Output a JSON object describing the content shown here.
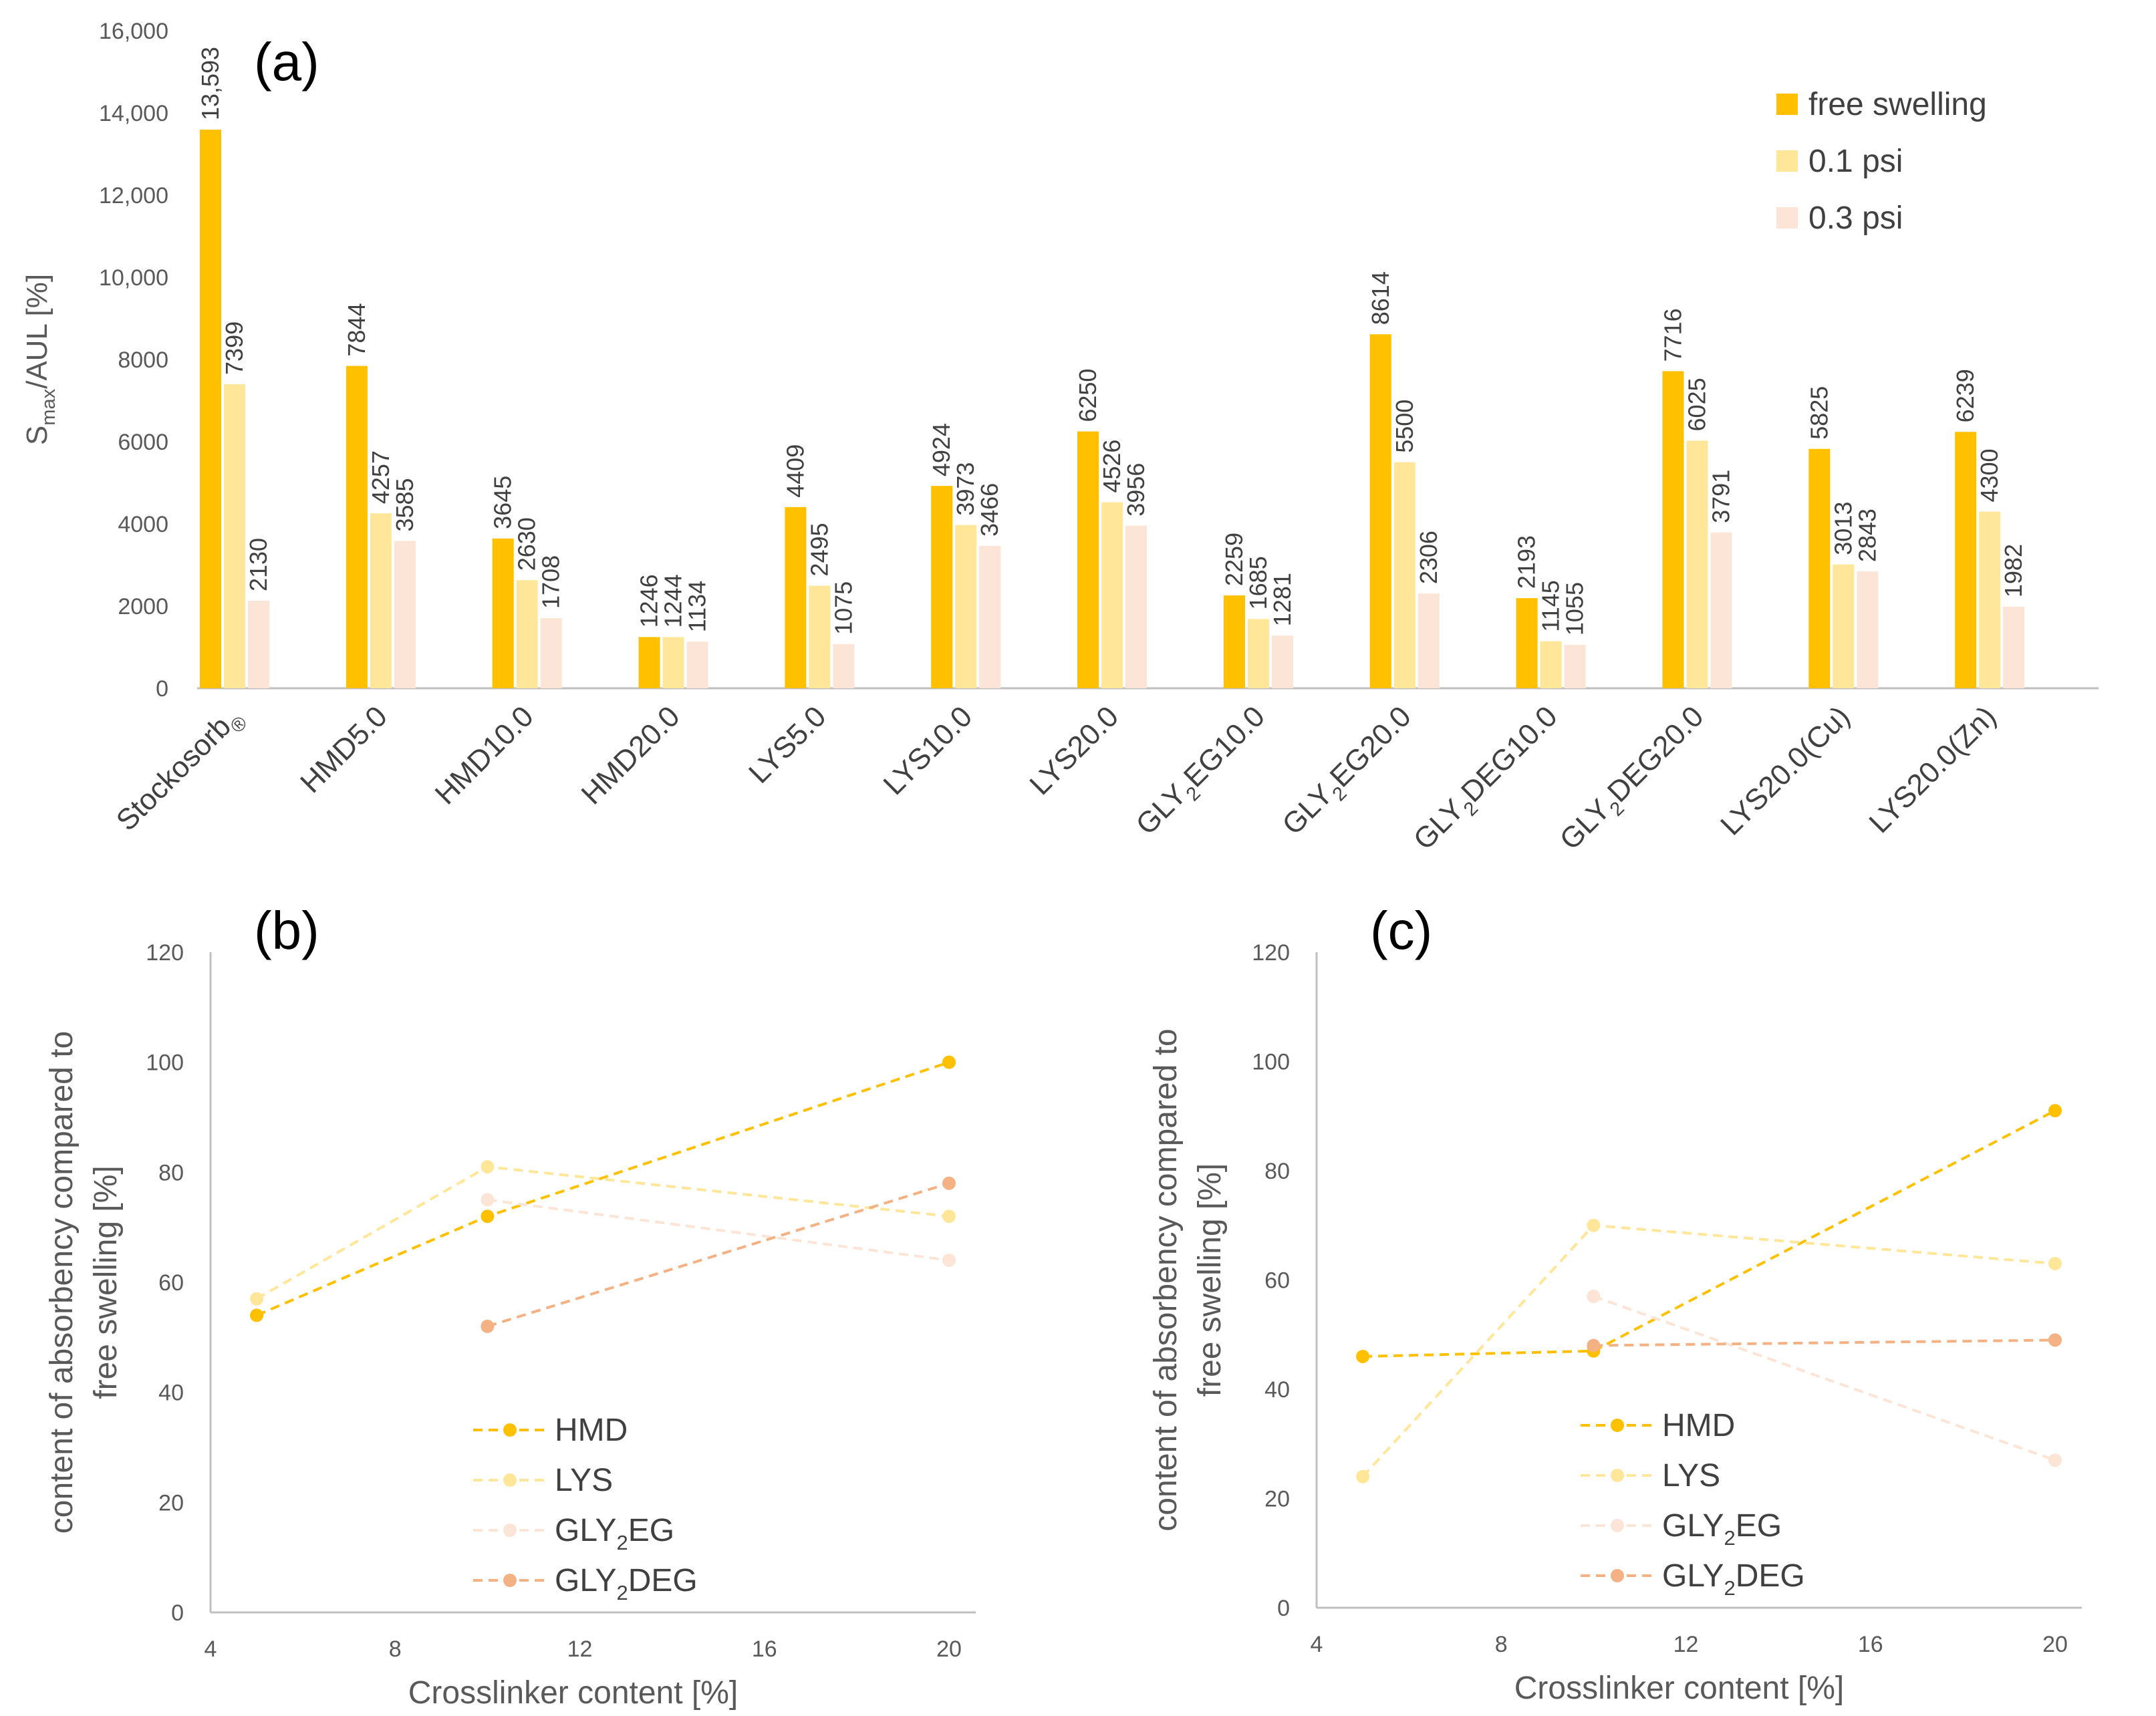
{
  "colors": {
    "free_swelling": "#FFC000",
    "psi_01": "#FFE699",
    "psi_03": "#FCE4D6",
    "HMD": "#FFC000",
    "LYS": "#FFE699",
    "GLY2EG": "#FCE4D6",
    "GLY2DEG": "#F4B183",
    "axis": "#BFBFBF",
    "text": "#404040",
    "tick": "#595959"
  },
  "chart_data": [
    {
      "type": "bar",
      "panel": "(a)",
      "ylabel_main": "S",
      "ylabel_sub": "max",
      "ylabel_rest": "/AUL [%]",
      "yticks": [
        "0",
        "2000",
        "4000",
        "6000",
        "8000",
        "10,000",
        "12,000",
        "14,000",
        "16,000"
      ],
      "ylim": [
        0,
        16000
      ],
      "categories": [
        "Stockosorb®",
        "HMD5.0",
        "HMD10.0",
        "HMD20.0",
        "LYS5.0",
        "LYS10.0",
        "LYS20.0",
        "GLY2EG10.0",
        "GLY2EG20.0",
        "GLY2DEG10.0",
        "GLY2DEG20.0",
        "LYS20.0(Cu)",
        "LYS20.0(Zn)"
      ],
      "category_display": [
        [
          "Stockosorb",
          "®",
          ""
        ],
        [
          "HMD5.0",
          "",
          ""
        ],
        [
          "HMD10.0",
          "",
          ""
        ],
        [
          "HMD20.0",
          "",
          ""
        ],
        [
          "LYS5.0",
          "",
          ""
        ],
        [
          "LYS10.0",
          "",
          ""
        ],
        [
          "LYS20.0",
          "",
          ""
        ],
        [
          "GLY",
          "2",
          "EG10.0"
        ],
        [
          "GLY",
          "2",
          "EG20.0"
        ],
        [
          "GLY",
          "2",
          "DEG10.0"
        ],
        [
          "GLY",
          "2",
          "DEG20.0"
        ],
        [
          "LYS20.0(Cu)",
          "",
          ""
        ],
        [
          "LYS20.0(Zn)",
          "",
          ""
        ]
      ],
      "series": [
        {
          "name": "free swelling",
          "values": [
            13593,
            7844,
            3645,
            1246,
            4409,
            4924,
            6250,
            2259,
            8614,
            2193,
            7716,
            5825,
            6239
          ],
          "labels": [
            "13,593",
            "7844",
            "3645",
            "1246",
            "4409",
            "4924",
            "6250",
            "2259",
            "8614",
            "2193",
            "7716",
            "5825",
            "6239"
          ]
        },
        {
          "name": "0.1 psi",
          "values": [
            7399,
            4257,
            2630,
            1244,
            2495,
            3973,
            4526,
            1685,
            5500,
            1145,
            6025,
            3013,
            4300
          ],
          "labels": [
            "7399",
            "4257",
            "2630",
            "1244",
            "2495",
            "3973",
            "4526",
            "1685",
            "5500",
            "1145",
            "6025",
            "3013",
            "4300"
          ]
        },
        {
          "name": "0.3 psi",
          "values": [
            2130,
            3585,
            1708,
            1134,
            1075,
            3466,
            3956,
            1281,
            2306,
            1055,
            3791,
            2843,
            1982
          ],
          "labels": [
            "2130",
            "3585",
            "1708",
            "1134",
            "1075",
            "3466",
            "3956",
            "1281",
            "2306",
            "1055",
            "3791",
            "2843",
            "1982"
          ]
        }
      ],
      "legend": [
        "free swelling",
        "0.1 psi",
        "0.3 psi"
      ],
      "legend_position": "top-right"
    },
    {
      "type": "line",
      "panel": "(b)",
      "xlabel": "Crosslinker content [%]",
      "ylabel_line1": "content of absorbency compared to",
      "ylabel_line2": "free swelling [%]",
      "xlim": [
        4,
        20
      ],
      "ylim": [
        0,
        120
      ],
      "xticks": [
        "4",
        "8",
        "12",
        "16",
        "20"
      ],
      "yticks": [
        "0",
        "20",
        "40",
        "60",
        "80",
        "100",
        "120"
      ],
      "series": [
        {
          "name": "HMD",
          "x": [
            5,
            10,
            20
          ],
          "y": [
            54,
            72,
            100
          ]
        },
        {
          "name": "LYS",
          "x": [
            5,
            10,
            20
          ],
          "y": [
            57,
            81,
            72
          ]
        },
        {
          "name": "GLY2EG",
          "x": [
            10,
            20
          ],
          "y": [
            75,
            64
          ]
        },
        {
          "name": "GLY2DEG",
          "x": [
            10,
            20
          ],
          "y": [
            52,
            78
          ]
        }
      ],
      "legend": [
        [
          "HMD",
          "",
          ""
        ],
        [
          "LYS",
          "",
          ""
        ],
        [
          "GLY",
          "2",
          "EG"
        ],
        [
          "GLY",
          "2",
          "DEG"
        ]
      ],
      "legend_position": "bottom-center"
    },
    {
      "type": "line",
      "panel": "(c)",
      "xlabel": "Crosslinker content [%]",
      "ylabel_line1": "content of absorbency compared to",
      "ylabel_line2": "free swelling [%]",
      "xlim": [
        4,
        20
      ],
      "ylim": [
        0,
        120
      ],
      "xticks": [
        "4",
        "8",
        "12",
        "16",
        "20"
      ],
      "yticks": [
        "0",
        "20",
        "40",
        "60",
        "80",
        "100",
        "120"
      ],
      "series": [
        {
          "name": "HMD",
          "x": [
            5,
            10,
            20
          ],
          "y": [
            46,
            47,
            91
          ]
        },
        {
          "name": "LYS",
          "x": [
            5,
            10,
            20
          ],
          "y": [
            24,
            70,
            63
          ]
        },
        {
          "name": "GLY2EG",
          "x": [
            10,
            20
          ],
          "y": [
            57,
            27
          ]
        },
        {
          "name": "GLY2DEG",
          "x": [
            10,
            20
          ],
          "y": [
            48,
            49
          ]
        }
      ],
      "legend": [
        [
          "HMD",
          "",
          ""
        ],
        [
          "LYS",
          "",
          ""
        ],
        [
          "GLY",
          "2",
          "EG"
        ],
        [
          "GLY",
          "2",
          "DEG"
        ]
      ],
      "legend_position": "bottom-center"
    }
  ]
}
